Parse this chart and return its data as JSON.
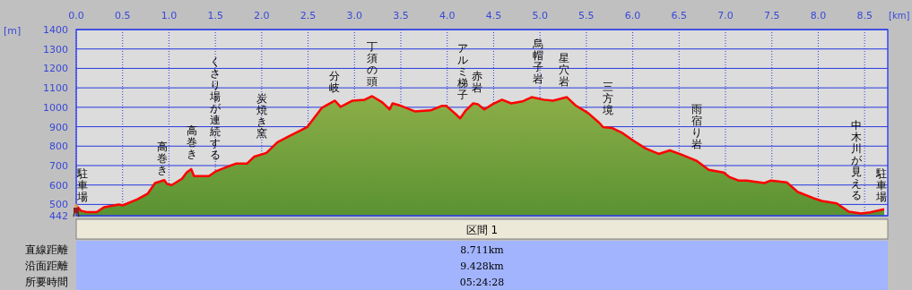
{
  "chart_data": {
    "type": "area",
    "xlabel": "[km]",
    "ylabel": "[m]",
    "xlim": [
      0,
      8.75
    ],
    "ylim": [
      442,
      1400
    ],
    "xticks": [
      {
        "value": 0,
        "label": "0.0"
      },
      {
        "value": 0.5,
        "label": "0.5"
      },
      {
        "value": 1,
        "label": "1.0"
      },
      {
        "value": 1.5,
        "label": "1.5"
      },
      {
        "value": 2,
        "label": "2.0"
      },
      {
        "value": 2.5,
        "label": "2.5"
      },
      {
        "value": 3,
        "label": "3.0"
      },
      {
        "value": 3.5,
        "label": "3.5"
      },
      {
        "value": 4,
        "label": "4.0"
      },
      {
        "value": 4.5,
        "label": "4.5"
      },
      {
        "value": 5,
        "label": "5.0"
      },
      {
        "value": 5.5,
        "label": "5.5"
      },
      {
        "value": 6,
        "label": "6.0"
      },
      {
        "value": 6.5,
        "label": "6.5"
      },
      {
        "value": 7,
        "label": "7.0"
      },
      {
        "value": 7.5,
        "label": "7.5"
      },
      {
        "value": 8,
        "label": "8.0"
      },
      {
        "value": 8.5,
        "label": "8.5"
      }
    ],
    "yticks": [
      442,
      500,
      600,
      700,
      800,
      900,
      1000,
      1100,
      1200,
      1300,
      1400
    ],
    "grid": true,
    "series": [
      {
        "color": "#ff0000",
        "x": [
          0,
          0.05,
          0.12,
          0.22,
          0.3,
          0.46,
          0.5,
          0.66,
          0.77,
          0.85,
          0.95,
          0.98,
          1.03,
          1.14,
          1.19,
          1.24,
          1.27,
          1.37,
          1.43,
          1.5,
          1.59,
          1.72,
          1.84,
          1.92,
          2.05,
          2.17,
          2.3,
          2.43,
          2.49,
          2.65,
          2.79,
          2.85,
          2.98,
          3.11,
          3.19,
          3.3,
          3.38,
          3.41,
          3.48,
          3.65,
          3.82,
          3.94,
          3.99,
          4.08,
          4.14,
          4.2,
          4.28,
          4.33,
          4.4,
          4.49,
          4.59,
          4.69,
          4.81,
          4.91,
          5.04,
          5.14,
          5.29,
          5.38,
          5.52,
          5.64,
          5.68,
          5.78,
          5.88,
          6.02,
          6.14,
          6.28,
          6.4,
          6.53,
          6.69,
          6.82,
          6.98,
          7.04,
          7.14,
          7.23,
          7.42,
          7.49,
          7.66,
          7.78,
          7.95,
          8.04,
          8.2,
          8.33,
          8.46,
          8.56,
          8.711
        ],
        "values": [
          495,
          468,
          460,
          460,
          486,
          500,
          495,
          527,
          555,
          610,
          625,
          605,
          600,
          632,
          664,
          682,
          646,
          646,
          646,
          669,
          687,
          710,
          710,
          746,
          765,
          820,
          852,
          884,
          898,
          998,
          1034,
          1002,
          1034,
          1039,
          1057,
          1025,
          989,
          1020,
          1011,
          979,
          984,
          1007,
          1007,
          970,
          943,
          984,
          1020,
          1016,
          989,
          1016,
          1039,
          1020,
          1030,
          1052,
          1039,
          1034,
          1052,
          1011,
          970,
          920,
          898,
          893,
          870,
          824,
          788,
          760,
          778,
          756,
          724,
          678,
          664,
          642,
          623,
          623,
          610,
          623,
          614,
          564,
          532,
          518,
          505,
          463,
          454,
          459,
          475
        ]
      }
    ],
    "annotations": [
      "駐車場",
      "高巻き",
      "高巻き",
      "くさり場が連続する",
      "炭焼き窯",
      "分岐",
      "丁須の頭",
      "アルミ梯子",
      "赤岩",
      "烏帽子岩",
      "星穴岩",
      "三方境",
      "雨宿り岩",
      "中木川が見える",
      "駐車場",
      "区間 1",
      "直線距離",
      "8.711km",
      "沿面距離",
      "9.428km",
      "所要時間",
      "05:24:28"
    ]
  }
}
